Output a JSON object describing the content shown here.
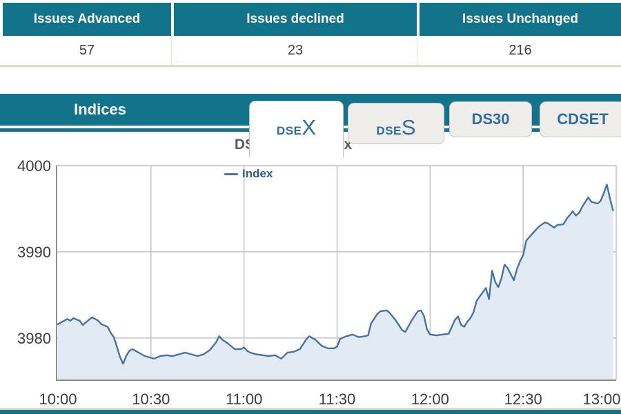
{
  "summary_table": {
    "columns": [
      {
        "header": "Issues Advanced",
        "value": "57"
      },
      {
        "header": "Issues declined",
        "value": "23"
      },
      {
        "header": "Issues Unchanged",
        "value": "216"
      }
    ]
  },
  "indices": {
    "title": "Indices",
    "tabs": [
      {
        "prefix": "DSE",
        "suffix": "X",
        "active": true
      },
      {
        "prefix": "DSE",
        "suffix": "S",
        "active": false
      },
      {
        "label": "DS30",
        "active": false
      },
      {
        "label": "CDSET",
        "active": false
      }
    ]
  },
  "colors": {
    "teal": "#12748A",
    "tab_text": "#2E6DA4",
    "grid": "#BEBEBE",
    "axis_border": "#8E8E8E",
    "area_fill": "#E2EAF4",
    "line": "#4572A7",
    "axis_label": "#3C3C3C",
    "title_text": "#5E5E5E",
    "legend_text": "#2F5C8F",
    "value_text": "#3F3F3F",
    "beige": "#DFDAC6"
  },
  "chart_data": {
    "type": "area",
    "title": "DSE Broad Index",
    "legend": [
      {
        "label": "Index"
      }
    ],
    "grid": true,
    "legend_position": "top",
    "x_axis": {
      "start_time": "10:00",
      "end_time": "13:00",
      "ticks": [
        {
          "min": 0,
          "label": "10:00"
        },
        {
          "min": 30,
          "label": "10:30"
        },
        {
          "min": 60,
          "label": "11:00"
        },
        {
          "min": 90,
          "label": "11:30"
        },
        {
          "min": 120,
          "label": "12:00"
        },
        {
          "min": 150,
          "label": "12:30"
        },
        {
          "min": 180,
          "label": "13:00"
        }
      ]
    },
    "y_axis": {
      "ticks": [
        4000,
        3990,
        3980
      ],
      "min": 3975.1,
      "max": 4000
    },
    "series": [
      {
        "name": "Index",
        "color": "#4572A7",
        "points": [
          [
            0,
            3981.6
          ],
          [
            2,
            3982
          ],
          [
            3,
            3982.2
          ],
          [
            4,
            3982
          ],
          [
            5,
            3982.3
          ],
          [
            7,
            3982
          ],
          [
            8,
            3981.5
          ],
          [
            10,
            3982.1
          ],
          [
            11,
            3982.4
          ],
          [
            13,
            3982
          ],
          [
            14,
            3981.6
          ],
          [
            16,
            3981.3
          ],
          [
            17,
            3980.6
          ],
          [
            18,
            3980.1
          ],
          [
            19,
            3979
          ],
          [
            20,
            3977.8
          ],
          [
            21,
            3977
          ],
          [
            22,
            3977.9
          ],
          [
            23,
            3978.5
          ],
          [
            24,
            3978.7
          ],
          [
            26,
            3978.3
          ],
          [
            28,
            3977.9
          ],
          [
            30,
            3977.7
          ],
          [
            31,
            3977.6
          ],
          [
            33,
            3977.9
          ],
          [
            35,
            3978
          ],
          [
            37,
            3977.9
          ],
          [
            39,
            3978.1
          ],
          [
            41,
            3978.3
          ],
          [
            43,
            3978.1
          ],
          [
            45,
            3977.9
          ],
          [
            47,
            3978.1
          ],
          [
            49,
            3978.6
          ],
          [
            51,
            3979.5
          ],
          [
            52,
            3980.2
          ],
          [
            53,
            3979.8
          ],
          [
            55,
            3979.3
          ],
          [
            57,
            3978.7
          ],
          [
            59,
            3978.7
          ],
          [
            60,
            3978.9
          ],
          [
            61,
            3978.5
          ],
          [
            62,
            3978.3
          ],
          [
            64,
            3978.1
          ],
          [
            66,
            3978
          ],
          [
            68,
            3977.9
          ],
          [
            70,
            3978
          ],
          [
            72,
            3977.6
          ],
          [
            74,
            3978.3
          ],
          [
            76,
            3978.4
          ],
          [
            78,
            3978.7
          ],
          [
            80,
            3979.8
          ],
          [
            81,
            3980.2
          ],
          [
            83,
            3979.8
          ],
          [
            85,
            3979.1
          ],
          [
            87,
            3978.8
          ],
          [
            89,
            3978.8
          ],
          [
            90,
            3979
          ],
          [
            91,
            3979.9
          ],
          [
            93,
            3980.2
          ],
          [
            95,
            3980.4
          ],
          [
            97,
            3980.1
          ],
          [
            99,
            3980.2
          ],
          [
            100,
            3980.3
          ],
          [
            101,
            3981.7
          ],
          [
            103,
            3982.8
          ],
          [
            104,
            3983.1
          ],
          [
            106,
            3983.2
          ],
          [
            107,
            3982.9
          ],
          [
            109,
            3982
          ],
          [
            111,
            3980.9
          ],
          [
            112,
            3980.7
          ],
          [
            114,
            3982
          ],
          [
            116,
            3983.1
          ],
          [
            117,
            3983.2
          ],
          [
            118,
            3982.6
          ],
          [
            119,
            3981
          ],
          [
            120,
            3980.4
          ],
          [
            122,
            3980.3
          ],
          [
            124,
            3980.4
          ],
          [
            126,
            3980.5
          ],
          [
            128,
            3982.1
          ],
          [
            129,
            3982.5
          ],
          [
            130,
            3981.5
          ],
          [
            131,
            3981.3
          ],
          [
            132,
            3981.9
          ],
          [
            133,
            3982.3
          ],
          [
            134,
            3983
          ],
          [
            135,
            3984.3
          ],
          [
            136,
            3984.8
          ],
          [
            137,
            3985.3
          ],
          [
            138,
            3985.8
          ],
          [
            139,
            3984.5
          ],
          [
            140,
            3987.8
          ],
          [
            141,
            3986.5
          ],
          [
            142,
            3985.9
          ],
          [
            143,
            3986.9
          ],
          [
            144,
            3988.5
          ],
          [
            145,
            3988.1
          ],
          [
            146,
            3987.4
          ],
          [
            147,
            3986.7
          ],
          [
            148,
            3988
          ],
          [
            149,
            3988.9
          ],
          [
            150,
            3989.6
          ],
          [
            151,
            3991.3
          ],
          [
            153,
            3992.1
          ],
          [
            155,
            3992.9
          ],
          [
            157,
            3993.4
          ],
          [
            158,
            3993.3
          ],
          [
            160,
            3992.8
          ],
          [
            161,
            3993.1
          ],
          [
            163,
            3993.2
          ],
          [
            164,
            3993.8
          ],
          [
            166,
            3994.7
          ],
          [
            167,
            3994.2
          ],
          [
            168,
            3994.5
          ],
          [
            169,
            3995.2
          ],
          [
            171,
            3996.3
          ],
          [
            172,
            3995.8
          ],
          [
            174,
            3995.6
          ],
          [
            175,
            3995.9
          ],
          [
            176,
            3996.8
          ],
          [
            177,
            3997.8
          ],
          [
            178,
            3996.2
          ],
          [
            179,
            3994.8
          ]
        ]
      }
    ]
  }
}
